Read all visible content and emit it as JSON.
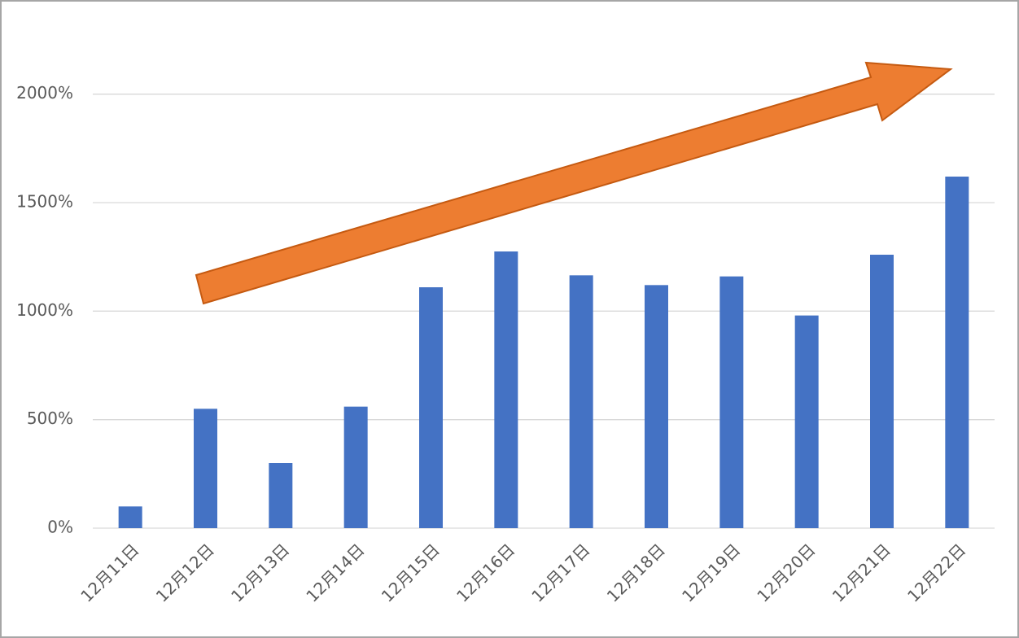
{
  "chart_data": {
    "type": "bar",
    "categories": [
      "12月11日",
      "12月12日",
      "12月13日",
      "12月14日",
      "12月15日",
      "12月16日",
      "12月17日",
      "12月18日",
      "12月19日",
      "12月20日",
      "12月21日",
      "12月22日"
    ],
    "values": [
      100,
      550,
      300,
      560,
      1110,
      1275,
      1165,
      1120,
      1160,
      980,
      1260,
      1620
    ],
    "color": "#4472c4",
    "ylim": [
      0,
      2250
    ],
    "yticks": [
      {
        "value": 0,
        "label": "0%"
      },
      {
        "value": 500,
        "label": "500%"
      },
      {
        "value": 1000,
        "label": "1000%"
      },
      {
        "value": 1500,
        "label": "1500%"
      },
      {
        "value": 2000,
        "label": "2000%"
      }
    ],
    "grid": true
  }
}
